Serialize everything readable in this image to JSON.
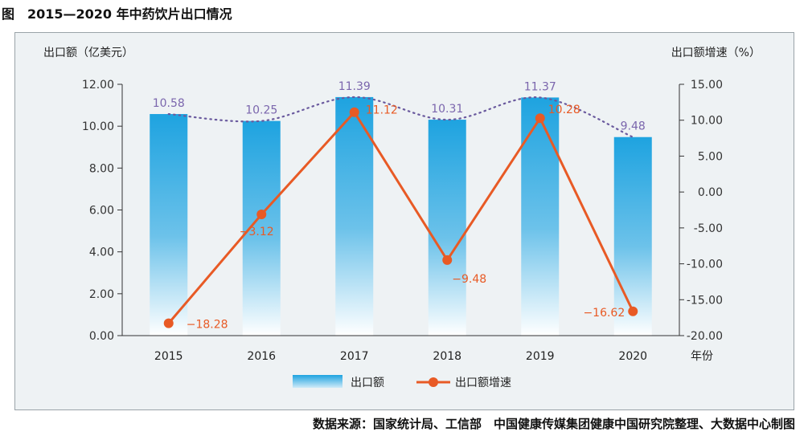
{
  "figure": {
    "title": "图　2015—2020 年中药饮片出口情况",
    "source": "数据来源：国家统计局、工信部　中国健康传媒集团健康中国研究院整理、大数据中心制图"
  },
  "colors": {
    "bar_top": "#1ea3e0",
    "bar_bottom": "#ffffff",
    "growth_line": "#e85a25",
    "trend_dotted": "#6a5a9e",
    "bar_label": "#7b66ad",
    "growth_label": "#e85a25",
    "frame_bg": "#eef2f4"
  },
  "chart_data": {
    "type": "bar",
    "categories": [
      "2015",
      "2016",
      "2017",
      "2018",
      "2019",
      "2020"
    ],
    "xlabel": "年份",
    "ylabel_left": "出口额（亿美元）",
    "ylabel_right": "出口额增速（%）",
    "ylim_left": [
      0,
      12
    ],
    "ylim_right": [
      -20,
      15
    ],
    "yticks_left": [
      "0.00",
      "2.00",
      "4.00",
      "6.00",
      "8.00",
      "10.00",
      "12.00"
    ],
    "yticks_right": [
      "-20.00",
      "-15.00",
      "-10.00",
      "-5.00",
      "0.00",
      "5.00",
      "10.00",
      "15.00"
    ],
    "legend_position": "bottom-center",
    "grid": false,
    "series": [
      {
        "name": "出口额",
        "type": "bar",
        "axis": "left",
        "values": [
          10.58,
          10.25,
          11.39,
          10.31,
          11.37,
          9.48
        ],
        "labels": [
          "10.58",
          "10.25",
          "11.39",
          "10.31",
          "11.37",
          "9.48"
        ]
      },
      {
        "name": "出口额增速",
        "type": "line",
        "axis": "right",
        "values": [
          -18.28,
          -3.12,
          11.12,
          -9.48,
          10.28,
          -16.62
        ],
        "labels": [
          "−18.28",
          "−3.12",
          "11.12",
          "−9.48",
          "10.28",
          "−16.62"
        ]
      }
    ],
    "trendline": {
      "of_series": "出口额",
      "style": "dotted",
      "kind": "polynomial"
    }
  }
}
